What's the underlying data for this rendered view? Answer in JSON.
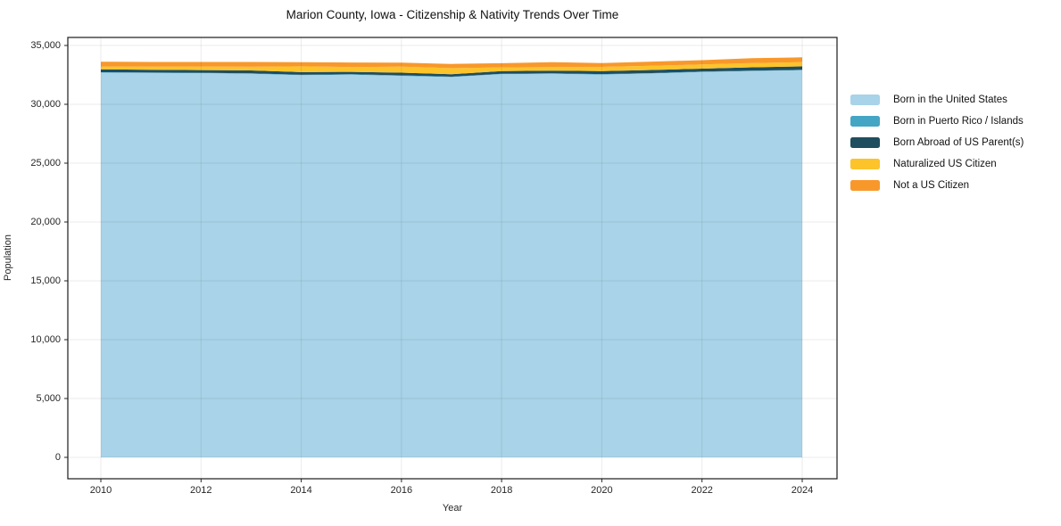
{
  "page": {
    "background": "#ffffff"
  },
  "chart_data": {
    "type": "area",
    "stacked": true,
    "title": "Marion County, Iowa - Citizenship & Nativity Trends Over Time",
    "xlabel": "Year",
    "ylabel": "Population",
    "grid": true,
    "legend_position": "right-outside",
    "xlim": [
      2010,
      2024
    ],
    "ylim": [
      0,
      35000
    ],
    "x": [
      2010,
      2011,
      2012,
      2013,
      2014,
      2015,
      2016,
      2017,
      2018,
      2019,
      2020,
      2021,
      2022,
      2023,
      2024
    ],
    "x_ticks": [
      {
        "v": 2010,
        "label": "2010"
      },
      {
        "v": 2012,
        "label": "2012"
      },
      {
        "v": 2014,
        "label": "2014"
      },
      {
        "v": 2016,
        "label": "2016"
      },
      {
        "v": 2018,
        "label": "2018"
      },
      {
        "v": 2020,
        "label": "2020"
      },
      {
        "v": 2022,
        "label": "2022"
      },
      {
        "v": 2024,
        "label": "2024"
      }
    ],
    "y_ticks": [
      {
        "v": 0,
        "label": "0"
      },
      {
        "v": 5000,
        "label": "5,000"
      },
      {
        "v": 10000,
        "label": "10,000"
      },
      {
        "v": 15000,
        "label": "15,000"
      },
      {
        "v": 20000,
        "label": "20,000"
      },
      {
        "v": 25000,
        "label": "25,000"
      },
      {
        "v": 30000,
        "label": "30,000"
      },
      {
        "v": 35000,
        "label": "35,000"
      }
    ],
    "series": [
      {
        "name": "Born in the United States",
        "color": "#a8d3e8",
        "values": [
          32700,
          32670,
          32650,
          32600,
          32480,
          32520,
          32420,
          32320,
          32570,
          32600,
          32530,
          32620,
          32740,
          32830,
          32900
        ]
      },
      {
        "name": "Born in Puerto Rico / Islands",
        "color": "#45a5c4",
        "values": [
          30,
          25,
          30,
          30,
          25,
          30,
          40,
          30,
          25,
          30,
          40,
          35,
          40,
          35,
          30
        ]
      },
      {
        "name": "Born Abroad of US Parent(s)",
        "color": "#1f4e5f",
        "values": [
          250,
          240,
          230,
          250,
          230,
          210,
          230,
          210,
          230,
          230,
          250,
          260,
          250,
          280,
          290
        ]
      },
      {
        "name": "Naturalized US Citizen",
        "color": "#fdc32b",
        "values": [
          230,
          260,
          300,
          310,
          490,
          410,
          515,
          515,
          310,
          310,
          360,
          355,
          360,
          355,
          360
        ]
      },
      {
        "name": "Not a US Citizen",
        "color": "#f8982b",
        "values": [
          410,
          400,
          385,
          410,
          355,
          385,
          330,
          355,
          360,
          415,
          330,
          360,
          360,
          415,
          410
        ]
      }
    ]
  }
}
